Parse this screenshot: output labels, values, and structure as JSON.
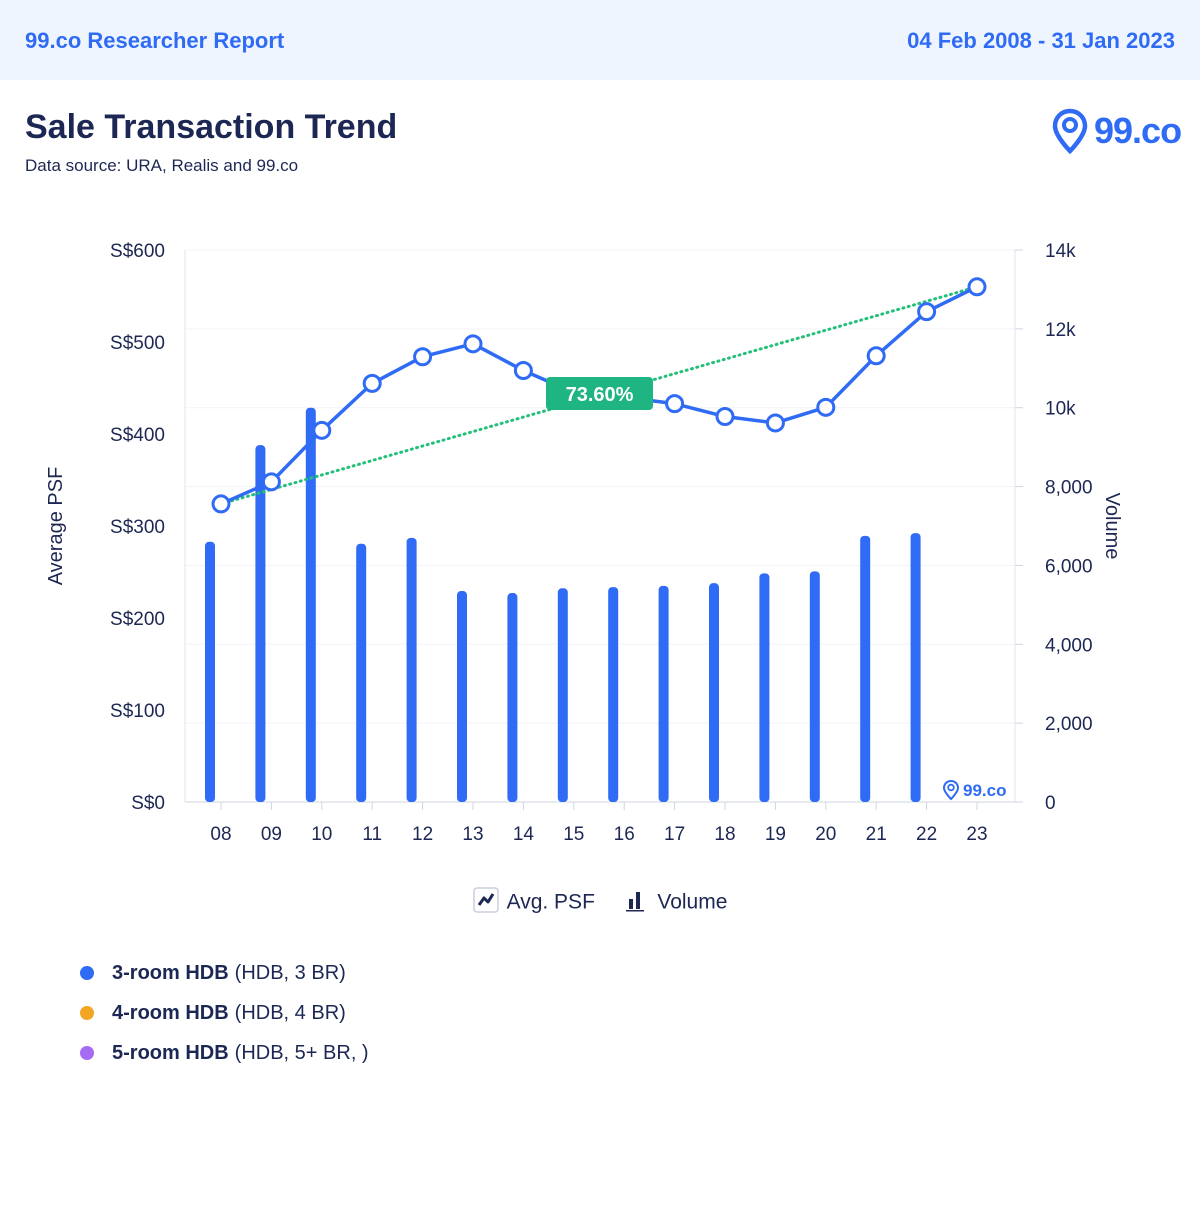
{
  "header": {
    "report_name": "99.co Researcher Report",
    "date_range": "04 Feb 2008 - 31 Jan 2023"
  },
  "title": "Sale Transaction Trend",
  "subtitle": "Data source: URA, Realis and 99.co",
  "logo": {
    "text": "99.co",
    "icon": "map-pin-icon"
  },
  "colors": {
    "accent": "#2f6bf5",
    "line": "#2f6bf5",
    "bar": "#2f6bf5",
    "trend": "#22c07a",
    "badge": "#1fb583",
    "orange": "#f3a623",
    "purple": "#a56bf5"
  },
  "chart_data": {
    "type": "bar",
    "categories": [
      "08",
      "09",
      "10",
      "11",
      "12",
      "13",
      "14",
      "15",
      "16",
      "17",
      "18",
      "19",
      "20",
      "21",
      "22",
      "23"
    ],
    "ylabel": "Average PSF",
    "y2label": "Volume",
    "ylim": [
      0,
      600
    ],
    "y2lim": [
      0,
      14000
    ],
    "y_ticks": [
      "S$0",
      "S$100",
      "S$200",
      "S$300",
      "S$400",
      "S$500",
      "S$600"
    ],
    "y2_ticks": [
      "0",
      "2,000",
      "4,000",
      "6,000",
      "8,000",
      "10k",
      "12k",
      "14k"
    ],
    "series": [
      {
        "name": "Avg. PSF",
        "type": "line",
        "values": [
          324,
          348,
          404,
          455,
          484,
          498,
          469,
          445,
          440,
          433,
          419,
          412,
          429,
          485,
          533,
          560
        ]
      },
      {
        "name": "Volume",
        "type": "bar",
        "values": [
          6600,
          9050,
          10000,
          6550,
          6700,
          5350,
          5300,
          5420,
          5450,
          5480,
          5550,
          5800,
          5850,
          6750,
          6820,
          null
        ]
      }
    ],
    "trend_label": "73.60%",
    "watermark": "99.co",
    "legend_position": "bottom-center",
    "grid": true
  },
  "series_list": [
    {
      "name": "3-room HDB",
      "detail": "(HDB, 3 BR)",
      "color": "#2f6bf5"
    },
    {
      "name": "4-room HDB",
      "detail": "(HDB, 4 BR)",
      "color": "#f3a623"
    },
    {
      "name": "5-room HDB",
      "detail": "(HDB, 5+ BR, )",
      "color": "#a56bf5"
    }
  ]
}
